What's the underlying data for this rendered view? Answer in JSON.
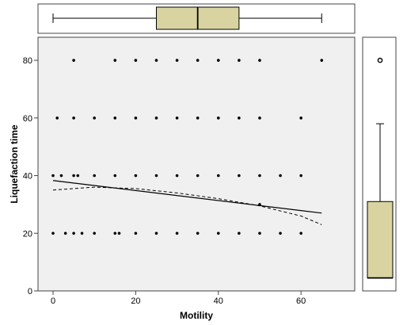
{
  "chart_data": {
    "type": "scatter",
    "xlabel": "Motility",
    "ylabel": "Liquefaction time",
    "xlim": [
      0,
      73
    ],
    "ylim": [
      0,
      88
    ],
    "x_ticks": [
      0,
      20,
      40,
      60
    ],
    "y_ticks": [
      0,
      20,
      40,
      60,
      80
    ],
    "grid": false,
    "colors": {
      "plot_background": "#f0f0f0",
      "box_fill": "#d9d3a2",
      "points": "#000000"
    },
    "points": [
      {
        "x": 0,
        "y": 20
      },
      {
        "x": 3,
        "y": 20
      },
      {
        "x": 5,
        "y": 20
      },
      {
        "x": 7,
        "y": 20
      },
      {
        "x": 10,
        "y": 20
      },
      {
        "x": 15,
        "y": 20
      },
      {
        "x": 16,
        "y": 20
      },
      {
        "x": 20,
        "y": 20
      },
      {
        "x": 25,
        "y": 20
      },
      {
        "x": 30,
        "y": 20
      },
      {
        "x": 35,
        "y": 20
      },
      {
        "x": 40,
        "y": 20
      },
      {
        "x": 45,
        "y": 20
      },
      {
        "x": 50,
        "y": 20
      },
      {
        "x": 55,
        "y": 20
      },
      {
        "x": 60,
        "y": 20
      },
      {
        "x": 0,
        "y": 40
      },
      {
        "x": 2,
        "y": 40
      },
      {
        "x": 5,
        "y": 40
      },
      {
        "x": 6,
        "y": 40
      },
      {
        "x": 10,
        "y": 40
      },
      {
        "x": 15,
        "y": 40
      },
      {
        "x": 20,
        "y": 40
      },
      {
        "x": 25,
        "y": 40
      },
      {
        "x": 30,
        "y": 40
      },
      {
        "x": 35,
        "y": 40
      },
      {
        "x": 40,
        "y": 40
      },
      {
        "x": 45,
        "y": 40
      },
      {
        "x": 50,
        "y": 40
      },
      {
        "x": 55,
        "y": 40
      },
      {
        "x": 60,
        "y": 40
      },
      {
        "x": 1,
        "y": 60
      },
      {
        "x": 5,
        "y": 60
      },
      {
        "x": 10,
        "y": 60
      },
      {
        "x": 15,
        "y": 60
      },
      {
        "x": 20,
        "y": 60
      },
      {
        "x": 25,
        "y": 60
      },
      {
        "x": 30,
        "y": 60
      },
      {
        "x": 35,
        "y": 60
      },
      {
        "x": 40,
        "y": 60
      },
      {
        "x": 45,
        "y": 60
      },
      {
        "x": 50,
        "y": 60
      },
      {
        "x": 60,
        "y": 60
      },
      {
        "x": 5,
        "y": 80
      },
      {
        "x": 15,
        "y": 80
      },
      {
        "x": 20,
        "y": 80
      },
      {
        "x": 25,
        "y": 80
      },
      {
        "x": 30,
        "y": 80
      },
      {
        "x": 35,
        "y": 80
      },
      {
        "x": 40,
        "y": 80
      },
      {
        "x": 45,
        "y": 80
      },
      {
        "x": 50,
        "y": 80
      },
      {
        "x": 65,
        "y": 80
      },
      {
        "x": 50,
        "y": 30
      }
    ],
    "linear_fit": [
      {
        "x": 0,
        "y": 38.3
      },
      {
        "x": 65,
        "y": 27
      }
    ],
    "quadratic_fit": [
      {
        "x": 0,
        "y": 35
      },
      {
        "x": 10,
        "y": 36
      },
      {
        "x": 20,
        "y": 35.5
      },
      {
        "x": 30,
        "y": 34
      },
      {
        "x": 40,
        "y": 32
      },
      {
        "x": 50,
        "y": 29.5
      },
      {
        "x": 60,
        "y": 26
      },
      {
        "x": 65,
        "y": 23
      }
    ],
    "x_boxplot": {
      "min": 0,
      "q1": 25,
      "median": 35,
      "q3": 45,
      "max": 65
    },
    "y_boxplot": {
      "min": 4.5,
      "q1": 4.5,
      "median": 4.5,
      "q3": 31,
      "max": 58,
      "outliers": [
        80
      ]
    }
  }
}
